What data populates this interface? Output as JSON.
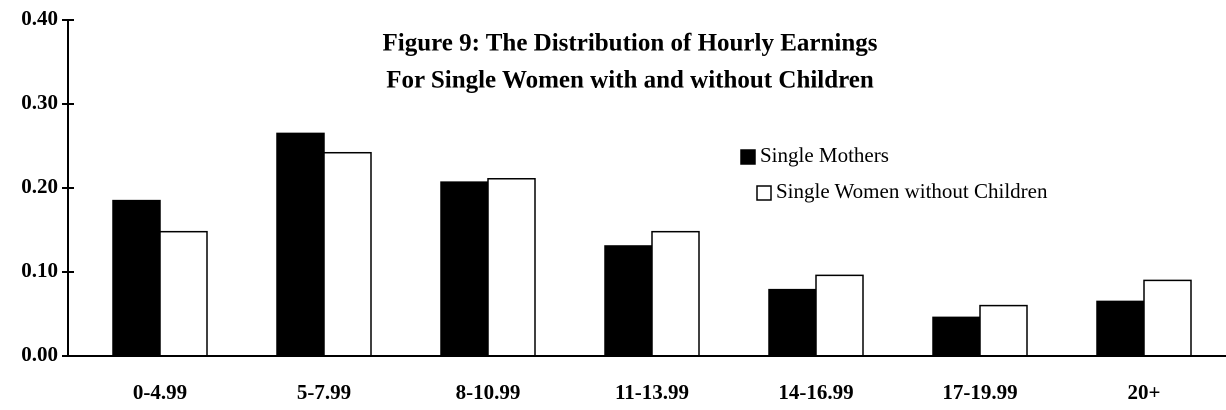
{
  "chart_data": {
    "type": "bar",
    "title": [
      "Figure 9:  The Distribution of Hourly Earnings",
      "For Single Women with and without Children"
    ],
    "categories": [
      "0-4.99",
      "5-7.99",
      "8-10.99",
      "11-13.99",
      "14-16.99",
      "17-19.99",
      "20+"
    ],
    "series": [
      {
        "name": "Single Mothers",
        "color": "#000000",
        "values": [
          0.185,
          0.265,
          0.207,
          0.131,
          0.079,
          0.046,
          0.065
        ]
      },
      {
        "name": "Single Women without Children",
        "color": "#ffffff",
        "values": [
          0.148,
          0.242,
          0.211,
          0.148,
          0.096,
          0.06,
          0.09
        ]
      }
    ],
    "ylim": [
      0,
      0.4
    ],
    "yticks": [
      {
        "value": 0,
        "label": "0.00"
      },
      {
        "value": 0.1,
        "label": "0.10"
      },
      {
        "value": 0.2,
        "label": "0.20"
      },
      {
        "value": 0.3,
        "label": "0.30"
      },
      {
        "value": 0.4,
        "label": "0.40"
      }
    ],
    "legend": "upper right"
  }
}
